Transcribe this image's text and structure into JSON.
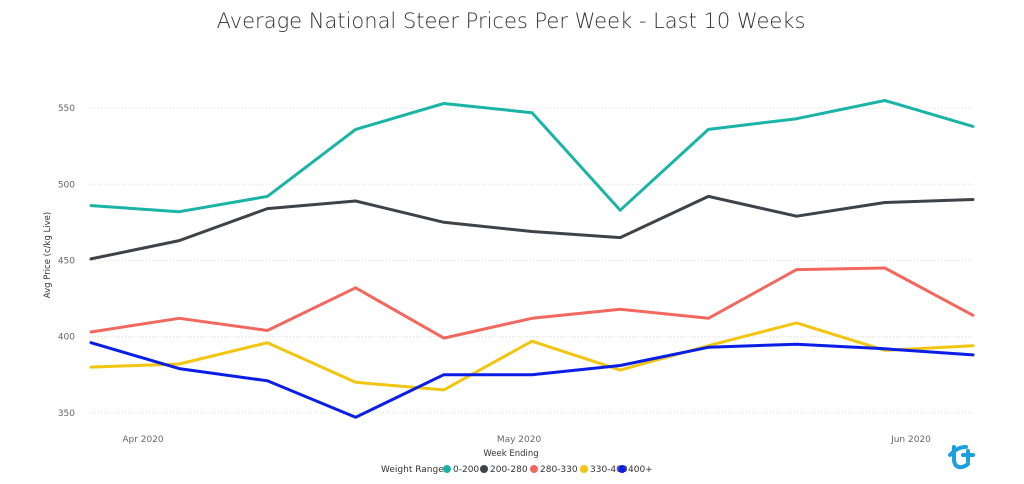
{
  "chart_data": {
    "type": "line",
    "title": "Average National Steer Prices Per Week - Last 10 Weeks",
    "xlabel": "Week Ending",
    "ylabel": "Avg Price (c/kg Live)",
    "x_tick_labels": [
      "Apr 2020",
      "May 2020",
      "Jun 2020"
    ],
    "y_ticks": [
      350,
      400,
      450,
      500,
      550
    ],
    "ylim": [
      340,
      575
    ],
    "grid": "horizontal",
    "legend_title": "Weight Range",
    "legend_position": "bottom-center",
    "series": [
      {
        "name": "0-200",
        "color": "#1ab4a7",
        "values": [
          486,
          482,
          492,
          536,
          553,
          547,
          483,
          536,
          543,
          555,
          538
        ]
      },
      {
        "name": "200-280",
        "color": "#3d4449",
        "values": [
          451,
          463,
          484,
          489,
          475,
          469,
          465,
          492,
          479,
          488,
          490
        ]
      },
      {
        "name": "280-330",
        "color": "#f2685f",
        "values": [
          403,
          412,
          404,
          432,
          399,
          412,
          418,
          412,
          444,
          445,
          414
        ]
      },
      {
        "name": "330-400",
        "color": "#f2c511",
        "values": [
          380,
          382,
          396,
          370,
          365,
          397,
          378,
          394,
          409,
          391,
          394
        ]
      },
      {
        "name": "400+",
        "color": "#0a1ee6",
        "values": [
          396,
          379,
          371,
          347,
          375,
          375,
          381,
          393,
          395,
          392,
          388
        ]
      }
    ]
  }
}
